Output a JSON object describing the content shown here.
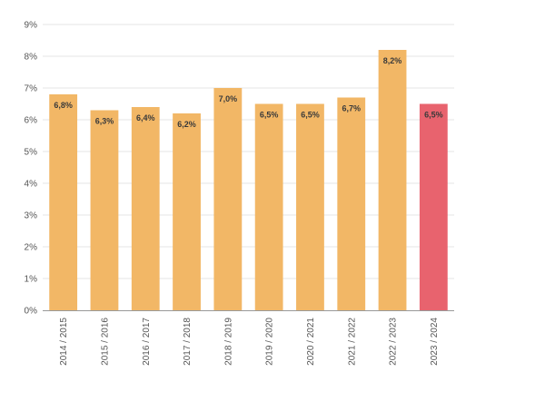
{
  "chart_data": {
    "type": "bar",
    "categories": [
      "2014 / 2015",
      "2015 / 2016",
      "2016 / 2017",
      "2017 / 2018",
      "2018 / 2019",
      "2019 / 2020",
      "2020 / 2021",
      "2021 / 2022",
      "2022 / 2023",
      "2023 / 2024"
    ],
    "values": [
      6.8,
      6.3,
      6.4,
      6.2,
      7.0,
      6.5,
      6.5,
      6.7,
      8.2,
      6.5
    ],
    "data_labels": [
      "6,8%",
      "6,3%",
      "6,4%",
      "6,2%",
      "7,0%",
      "6,5%",
      "6,5%",
      "6,7%",
      "8,2%",
      "6,5%"
    ],
    "y_ticks": [
      0,
      1,
      2,
      3,
      4,
      5,
      6,
      7,
      8,
      9
    ],
    "y_tick_labels": [
      "0%",
      "1%",
      "2%",
      "3%",
      "4%",
      "5%",
      "6%",
      "7%",
      "8%",
      "9%"
    ],
    "ylim": [
      0,
      9
    ],
    "grid": true,
    "legend": "none",
    "colors": {
      "bar": "#f2b766",
      "highlight_bar": "#e8636e",
      "grid": "#e6e6e6",
      "axis": "#999999"
    },
    "highlight_index": 9
  }
}
